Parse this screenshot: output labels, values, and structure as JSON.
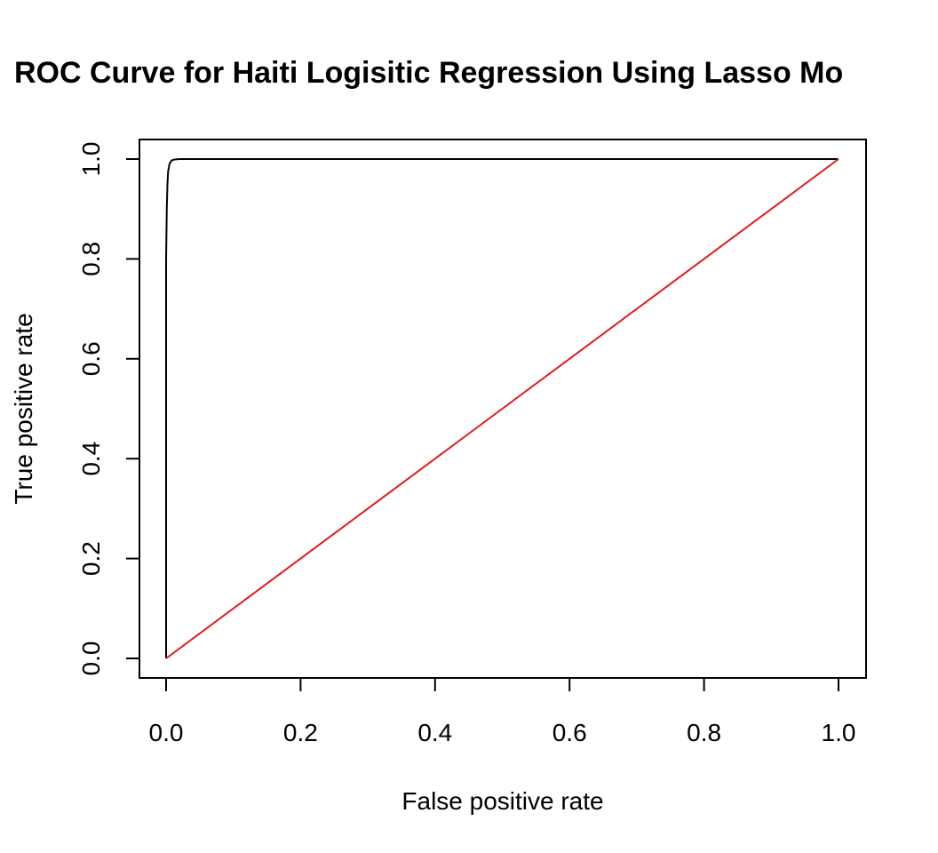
{
  "chart_data": {
    "type": "line",
    "title": "ROC Curve for Haiti Logisitic Regression Using Lasso Mo",
    "xlabel": "False positive rate",
    "ylabel": "True positive rate",
    "xlim": [
      0,
      1
    ],
    "ylim": [
      0,
      1
    ],
    "xticks": [
      "0.0",
      "0.2",
      "0.4",
      "0.6",
      "0.8",
      "1.0"
    ],
    "yticks": [
      "0.0",
      "0.2",
      "0.4",
      "0.6",
      "0.8",
      "1.0"
    ],
    "grid": false,
    "legend": "none",
    "series": [
      {
        "color": "#000000",
        "x": [
          0.0,
          0.0,
          0.001,
          0.002,
          0.003,
          0.005,
          0.008,
          0.012,
          0.02,
          0.05,
          1.0
        ],
        "y": [
          0.0,
          0.8,
          0.9,
          0.95,
          0.975,
          0.99,
          0.997,
          0.999,
          1.0,
          1.0,
          1.0
        ]
      },
      {
        "color": "#e41a1c",
        "x": [
          0.0,
          1.0
        ],
        "y": [
          0.0,
          1.0
        ]
      }
    ]
  }
}
